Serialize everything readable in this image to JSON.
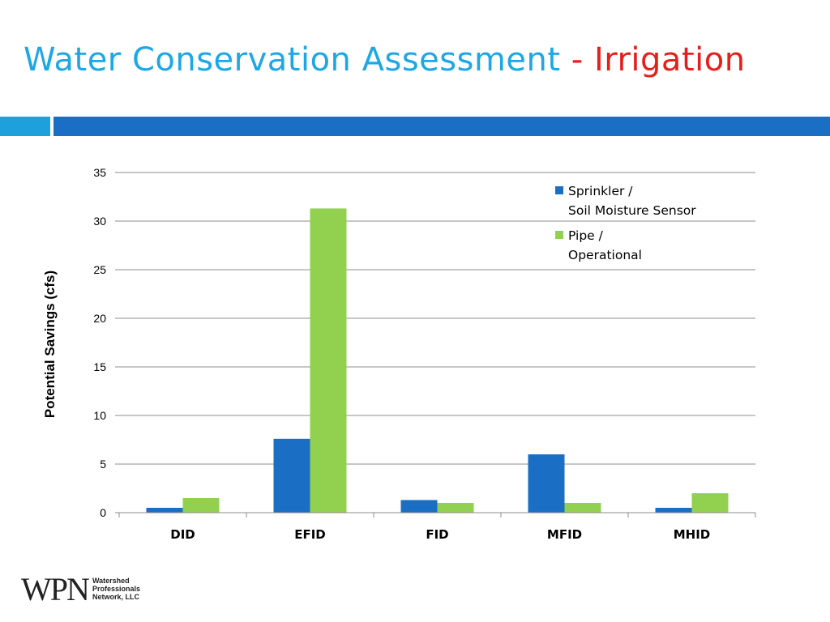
{
  "slide": {
    "title_main": "Water Conservation Assessment",
    "title_sub": "- Irrigation",
    "colors": {
      "title_main": "#1ea7e6",
      "title_sub": "#e3201b",
      "accent_bar_left": "#1ea0dc",
      "accent_bar_right": "#1a6fc4"
    }
  },
  "logo": {
    "mark": "WPN",
    "line1": "Watershed",
    "line2": "Professionals",
    "line3": "Network, LLC"
  },
  "chart_data": {
    "type": "bar",
    "title": "",
    "xlabel": "",
    "ylabel": "Potential Savings (cfs)",
    "ylim": [
      0,
      35
    ],
    "yticks": [
      0,
      5,
      10,
      15,
      20,
      25,
      30,
      35
    ],
    "grid": true,
    "legend_position": "top-right",
    "categories": [
      "DID",
      "EFID",
      "FID",
      "MFID",
      "MHID"
    ],
    "series": [
      {
        "name": "Sprinkler / Soil Moisture Sensor",
        "legend_lines": [
          "Sprinkler /",
          "Soil Moisture Sensor"
        ],
        "color": "#1a6fc4",
        "values": [
          0.5,
          7.6,
          1.3,
          6.0,
          0.5
        ]
      },
      {
        "name": "Pipe / Operational",
        "legend_lines": [
          "Pipe /",
          "Operational"
        ],
        "color": "#92d050",
        "values": [
          1.5,
          31.3,
          1.0,
          1.0,
          2.0
        ]
      }
    ]
  }
}
